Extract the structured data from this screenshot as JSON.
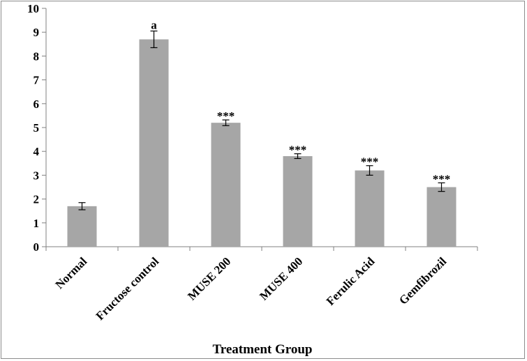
{
  "chart_data": {
    "type": "bar",
    "title": "",
    "xlabel": "Treatment Group",
    "ylabel": "",
    "ylim": [
      0,
      10
    ],
    "yticks": [
      0,
      1,
      2,
      3,
      4,
      5,
      6,
      7,
      8,
      9,
      10
    ],
    "grid": false,
    "categories": [
      "Normal",
      "Fructose control",
      "MUSE 200",
      "MUSE 400",
      "Ferulic Acid",
      "Gemfibrozil"
    ],
    "values": [
      1.7,
      8.7,
      5.2,
      3.8,
      3.2,
      2.5
    ],
    "errors": [
      0.15,
      0.35,
      0.12,
      0.1,
      0.2,
      0.18
    ],
    "annotations": [
      "",
      "a",
      "***",
      "***",
      "***",
      "***"
    ],
    "bar_color": "#a6a6a6",
    "axis_color": "#808080"
  }
}
